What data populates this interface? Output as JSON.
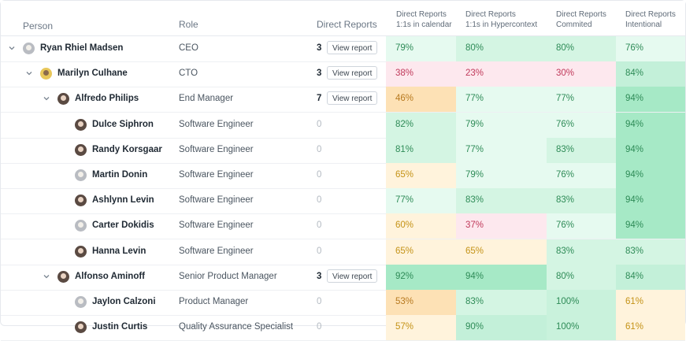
{
  "header": {
    "person": "Person",
    "role": "Role",
    "direct_reports": "Direct Reports",
    "metrics": [
      {
        "line1": "Direct Reports",
        "line2": "1:1s in calendar"
      },
      {
        "line1": "Direct Reports",
        "line2": "1:1s in Hypercontext"
      },
      {
        "line1": "Direct Reports",
        "line2": "Commited"
      },
      {
        "line1": "Direct Reports",
        "line2": "Intentional"
      }
    ]
  },
  "view_report_label": "View report",
  "rows": [
    {
      "name": "Ryan Rhiel Madsen",
      "role": "CEO",
      "reports": "3",
      "has_button": true,
      "expanded": true,
      "level": 0,
      "metrics": [
        {
          "v": "79%",
          "t": "green"
        },
        {
          "v": "80%",
          "t": "green"
        },
        {
          "v": "80%",
          "t": "green"
        },
        {
          "v": "76%",
          "t": "green"
        }
      ]
    },
    {
      "name": "Marilyn Culhane",
      "role": "CTO",
      "reports": "3",
      "has_button": true,
      "expanded": true,
      "level": 1,
      "metrics": [
        {
          "v": "38%",
          "t": "red"
        },
        {
          "v": "23%",
          "t": "red"
        },
        {
          "v": "30%",
          "t": "red"
        },
        {
          "v": "84%",
          "t": "green"
        }
      ]
    },
    {
      "name": "Alfredo Philips",
      "role": "End Manager",
      "reports": "7",
      "has_button": true,
      "expanded": true,
      "level": 2,
      "metrics": [
        {
          "v": "46%",
          "t": "orange"
        },
        {
          "v": "77%",
          "t": "green"
        },
        {
          "v": "77%",
          "t": "green"
        },
        {
          "v": "94%",
          "t": "green"
        }
      ]
    },
    {
      "name": "Dulce Siphron",
      "role": "Software Engineer",
      "reports": "0",
      "has_button": false,
      "level": 3,
      "metrics": [
        {
          "v": "82%",
          "t": "green"
        },
        {
          "v": "79%",
          "t": "green"
        },
        {
          "v": "76%",
          "t": "green"
        },
        {
          "v": "94%",
          "t": "green"
        }
      ]
    },
    {
      "name": "Randy Korsgaar",
      "role": "Software Engineer",
      "reports": "0",
      "has_button": false,
      "level": 3,
      "metrics": [
        {
          "v": "81%",
          "t": "green"
        },
        {
          "v": "77%",
          "t": "green"
        },
        {
          "v": "83%",
          "t": "green"
        },
        {
          "v": "94%",
          "t": "green"
        }
      ]
    },
    {
      "name": "Martin Donin",
      "role": "Software Engineer",
      "reports": "0",
      "has_button": false,
      "level": 3,
      "metrics": [
        {
          "v": "65%",
          "t": "yellow"
        },
        {
          "v": "79%",
          "t": "green"
        },
        {
          "v": "76%",
          "t": "green"
        },
        {
          "v": "94%",
          "t": "green"
        }
      ]
    },
    {
      "name": "Ashlynn Levin",
      "role": "Software Engineer",
      "reports": "0",
      "has_button": false,
      "level": 3,
      "metrics": [
        {
          "v": "77%",
          "t": "green"
        },
        {
          "v": "83%",
          "t": "green"
        },
        {
          "v": "83%",
          "t": "green"
        },
        {
          "v": "94%",
          "t": "green"
        }
      ]
    },
    {
      "name": "Carter Dokidis",
      "role": "Software Engineer",
      "reports": "0",
      "has_button": false,
      "level": 3,
      "metrics": [
        {
          "v": "60%",
          "t": "yellow"
        },
        {
          "v": "37%",
          "t": "red"
        },
        {
          "v": "76%",
          "t": "green"
        },
        {
          "v": "94%",
          "t": "green"
        }
      ]
    },
    {
      "name": "Hanna Levin",
      "role": "Software Engineer",
      "reports": "0",
      "has_button": false,
      "level": 3,
      "metrics": [
        {
          "v": "65%",
          "t": "yellow"
        },
        {
          "v": "65%",
          "t": "yellow"
        },
        {
          "v": "83%",
          "t": "green"
        },
        {
          "v": "83%",
          "t": "green"
        }
      ]
    },
    {
      "name": "Alfonso Aminoff",
      "role": "Senior Product Manager",
      "reports": "3",
      "has_button": true,
      "expanded": true,
      "level": 2,
      "metrics": [
        {
          "v": "92%",
          "t": "green"
        },
        {
          "v": "94%",
          "t": "green"
        },
        {
          "v": "80%",
          "t": "green"
        },
        {
          "v": "84%",
          "t": "green"
        }
      ]
    },
    {
      "name": "Jaylon Calzoni",
      "role": "Product Manager",
      "reports": "0",
      "has_button": false,
      "level": 3,
      "metrics": [
        {
          "v": "53%",
          "t": "orange"
        },
        {
          "v": "83%",
          "t": "green"
        },
        {
          "v": "100%",
          "t": "green"
        },
        {
          "v": "61%",
          "t": "yellow"
        }
      ]
    },
    {
      "name": "Justin Curtis",
      "role": "Quality Assurance Specialist",
      "reports": "0",
      "has_button": false,
      "level": 3,
      "metrics": [
        {
          "v": "57%",
          "t": "yellow"
        },
        {
          "v": "90%",
          "t": "green"
        },
        {
          "v": "100%",
          "t": "green"
        },
        {
          "v": "61%",
          "t": "yellow"
        }
      ]
    }
  ],
  "colors": {
    "green_text": "#2e8b57",
    "red_text": "#c0395a",
    "orange_text": "#b7791f",
    "yellow_text": "#c49216"
  }
}
